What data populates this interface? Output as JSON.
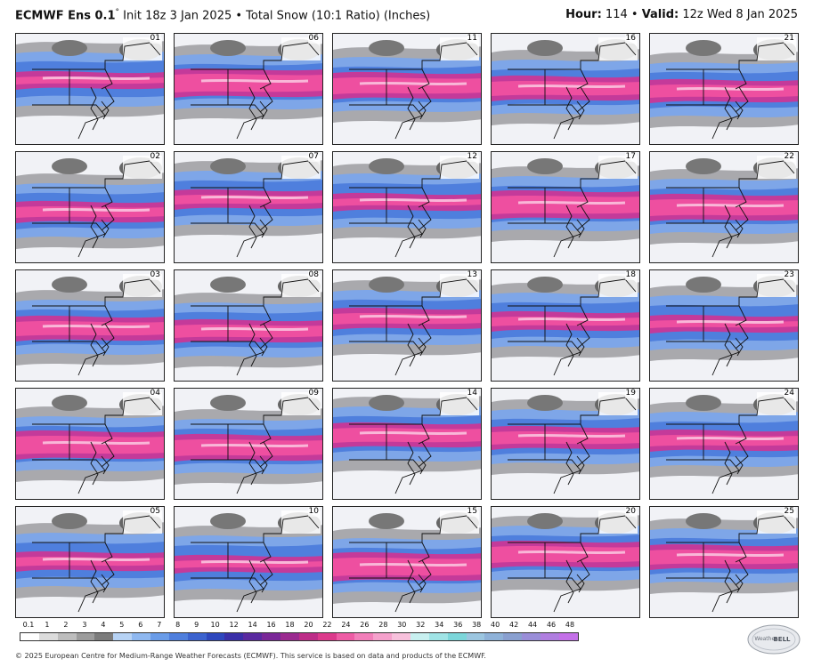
{
  "header": {
    "title_bold": "ECMWF Ens 0.1",
    "title_degree": "°",
    "title_rest": " Init 18z 3 Jan 2025 • Total Snow (10:1 Ratio) (Inches)",
    "hour_label": "Hour:",
    "hour_value": " 114 • ",
    "valid_label": "Valid:",
    "valid_value": " 12z Wed 8 Jan 2025"
  },
  "members": [
    "01",
    "06",
    "11",
    "16",
    "21",
    "02",
    "07",
    "12",
    "17",
    "22",
    "03",
    "08",
    "13",
    "18",
    "23",
    "04",
    "09",
    "14",
    "19",
    "24",
    "05",
    "10",
    "15",
    "20",
    "25"
  ],
  "legend": {
    "ticks": [
      "0.1",
      "1",
      "2",
      "3",
      "4",
      "5",
      "6",
      "7",
      "8",
      "9",
      "10",
      "12",
      "14",
      "16",
      "18",
      "20",
      "22",
      "24",
      "26",
      "28",
      "30",
      "32",
      "34",
      "36",
      "38",
      "40",
      "42",
      "44",
      "46",
      "48"
    ],
    "colors": [
      "#ffffff",
      "#dcdcdc",
      "#bdbdbd",
      "#9c9c9c",
      "#7c7c7c",
      "#b7d3f5",
      "#8fb8f0",
      "#6a9ce8",
      "#4f7fdd",
      "#3c63cf",
      "#2e47bd",
      "#3a2fa8",
      "#5a2aa0",
      "#7a2898",
      "#9b2b90",
      "#bd2d88",
      "#dc3a8c",
      "#ee5ca5",
      "#f27fba",
      "#f5a1cc",
      "#f7c1dc",
      "#c8f0f0",
      "#a0e4e6",
      "#7cd6da",
      "#9cc6e0",
      "#8fb2d8",
      "#8aa0d0",
      "#9a8ed8",
      "#b07ee0",
      "#c470e8"
    ]
  },
  "footer": {
    "text": "© 2025 European Centre for Medium-Range Weather Forecasts (ECMWF). This service is based on data and products of the ECMWF."
  },
  "logo": {
    "text_top": "Weather",
    "text_bottom": "BELL"
  }
}
